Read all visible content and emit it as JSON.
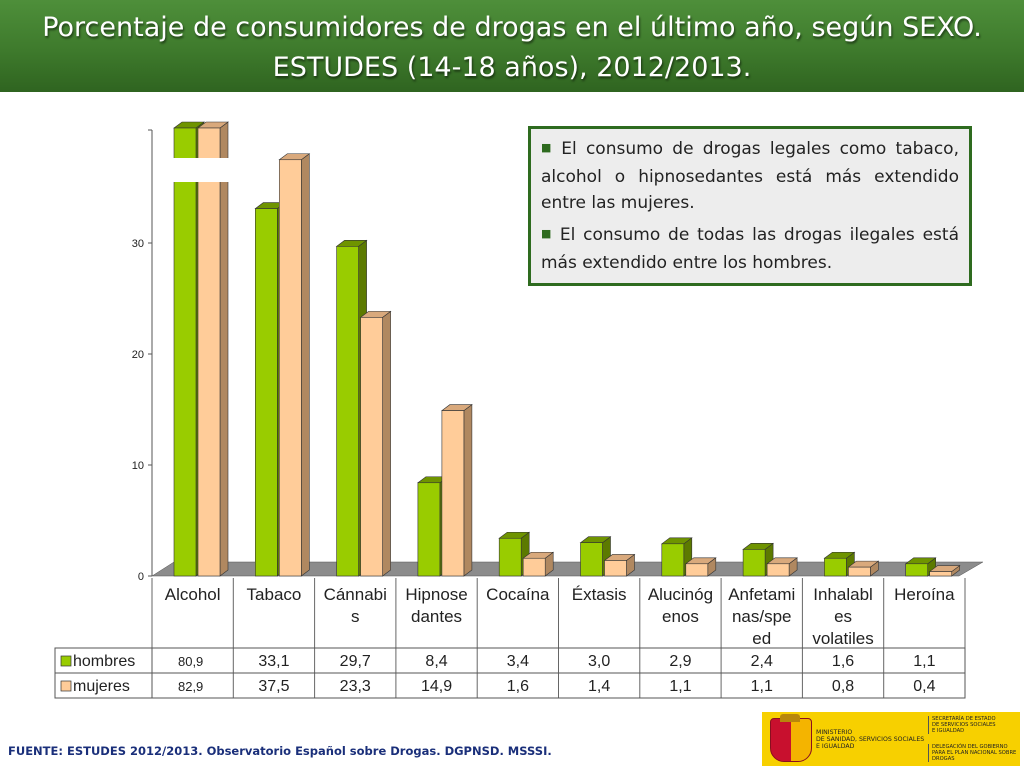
{
  "title": {
    "line1": "Porcentaje de consumidores de drogas en el último año, según SEXO.",
    "line2": "ESTUDES (14-18 años), 2012/2013."
  },
  "notes": [
    "El consumo de drogas legales como tabaco, alcohol o hipnosedantes está más extendido entre las mujeres.",
    "El consumo de todas las drogas ilegales está más extendido entre los hombres."
  ],
  "source": "FUENTE: ESTUDES 2012/2013. Observatorio Español sobre Drogas. DGPNSD. MSSSI.",
  "logo": {
    "ministry": [
      "MINISTERIO",
      "DE SANIDAD, SERVICIOS SOCIALES",
      "E IGUALDAD"
    ],
    "secretaria": [
      "SECRETARÍA DE ESTADO",
      "DE SERVICIOS SOCIALES",
      "E IGUALDAD"
    ],
    "delegacion": [
      "DELEGACIÓN DEL GOBIERNO",
      "PARA EL PLAN NACIONAL SOBRE DROGAS"
    ]
  },
  "colors": {
    "hombres": "#99cc00",
    "mujeres": "#ffcc99",
    "title_bg": "#3e7a2c",
    "note_border": "#2e6b1f"
  },
  "chart_data": {
    "type": "bar",
    "title": "",
    "xlabel": "",
    "ylabel": "",
    "ylim": [
      0,
      40
    ],
    "yticks": [
      0,
      10,
      20,
      30
    ],
    "categories": [
      [
        "Alcohol"
      ],
      [
        "Tabaco"
      ],
      [
        "Cánnabi",
        "s"
      ],
      [
        "Hipnose",
        "dantes"
      ],
      [
        "Cocaína"
      ],
      [
        "Éxtasis"
      ],
      [
        "Alucinóg",
        "enos"
      ],
      [
        "Anfetami",
        "nas/spe",
        "ed"
      ],
      [
        "Inhalabl",
        "es",
        "volatiles"
      ],
      [
        "Heroína"
      ]
    ],
    "series": [
      {
        "name": "hombres",
        "values": [
          80.9,
          33.1,
          29.7,
          8.4,
          3.4,
          3.0,
          2.9,
          2.4,
          1.6,
          1.1
        ],
        "labels": [
          "80,9",
          "33,1",
          "29,7",
          "8,4",
          "3,4",
          "3,0",
          "2,9",
          "2,4",
          "1,6",
          "1,1"
        ]
      },
      {
        "name": "mujeres",
        "values": [
          82.9,
          37.5,
          23.3,
          14.9,
          1.6,
          1.4,
          1.1,
          1.1,
          0.8,
          0.4
        ],
        "labels": [
          "82,9",
          "37,5",
          "23,3",
          "14,9",
          "1,6",
          "1,4",
          "1,1",
          "1,1",
          "0,8",
          "0,4"
        ]
      }
    ],
    "axis_break": true,
    "legend": "data-table-left",
    "grid": false
  }
}
